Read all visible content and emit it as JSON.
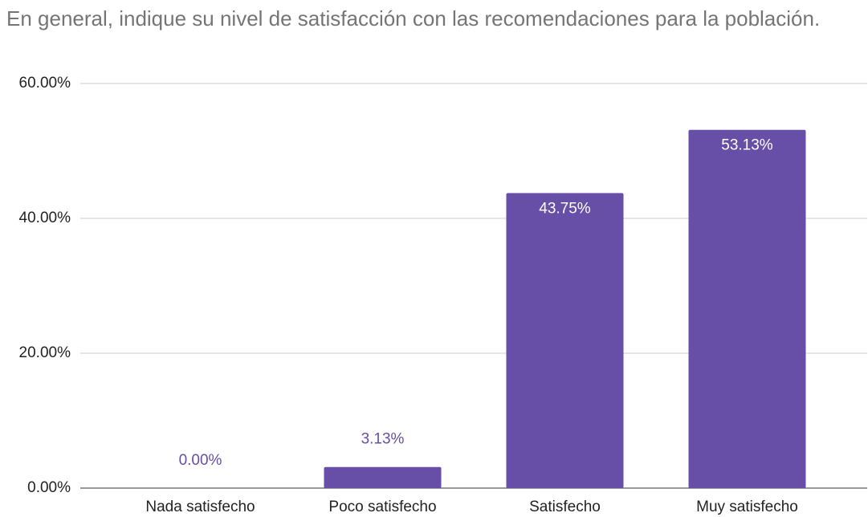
{
  "chart_data": {
    "type": "bar",
    "title": "En general, indique su nivel de satisfacción con las recomendaciones para la población.",
    "categories": [
      "Nada satisfecho",
      "Poco satisfecho",
      "Satisfecho",
      "Muy satisfecho"
    ],
    "values": [
      0,
      3.13,
      43.75,
      53.13
    ],
    "value_labels": [
      "0.00%",
      "3.13%",
      "43.75%",
      "53.13%"
    ],
    "color": "#674ea7",
    "ylim": [
      0,
      60
    ],
    "yticks": [
      {
        "value": 0,
        "label": "0.00%"
      },
      {
        "value": 20,
        "label": "20.00%"
      },
      {
        "value": 40,
        "label": "40.00%"
      },
      {
        "value": 60,
        "label": "60.00%"
      }
    ],
    "grid": true
  }
}
